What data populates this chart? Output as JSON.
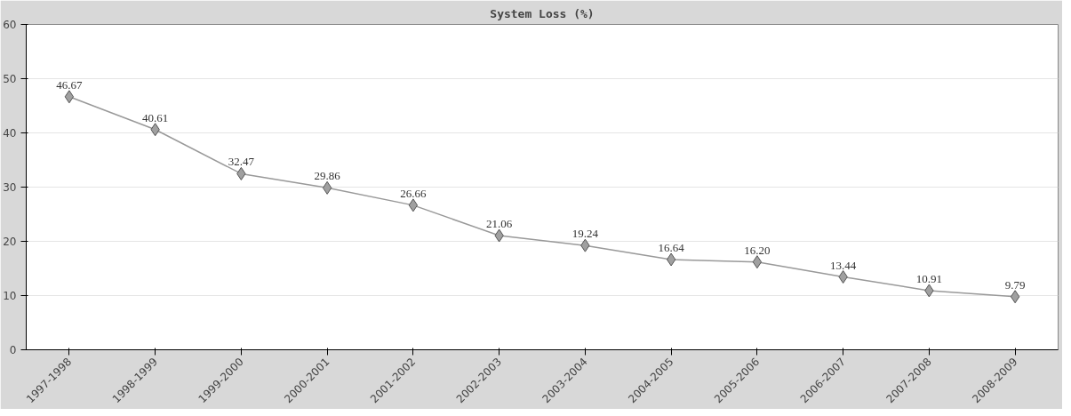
{
  "chart_data": {
    "type": "line",
    "title": "System Loss (%)",
    "categories": [
      "1997-1998",
      "1998-1999",
      "1999-2000",
      "2000-2001",
      "2001-2002",
      "2002-2003",
      "2003-2004",
      "2004-2005",
      "2005-2006",
      "2006-2007",
      "2007-2008",
      "2008-2009"
    ],
    "series": [
      {
        "color": "#999999",
        "values": [
          46.67,
          40.61,
          32.47,
          29.86,
          26.66,
          21.06,
          19.24,
          16.64,
          16.2,
          13.44,
          10.91,
          9.79
        ],
        "value_labels": [
          "46.67",
          "40.61",
          "32.47",
          "29.86",
          "26.66",
          "21.06",
          "19.24",
          "16.64",
          "16.20",
          "13.44",
          "10.91",
          "9.79"
        ]
      }
    ],
    "ylim": [
      0,
      60
    ],
    "yticks": [
      0,
      10,
      20,
      30,
      40,
      50,
      60
    ],
    "grid": "y",
    "marker": "diamond",
    "line_style": "solid",
    "data_labels": true
  }
}
